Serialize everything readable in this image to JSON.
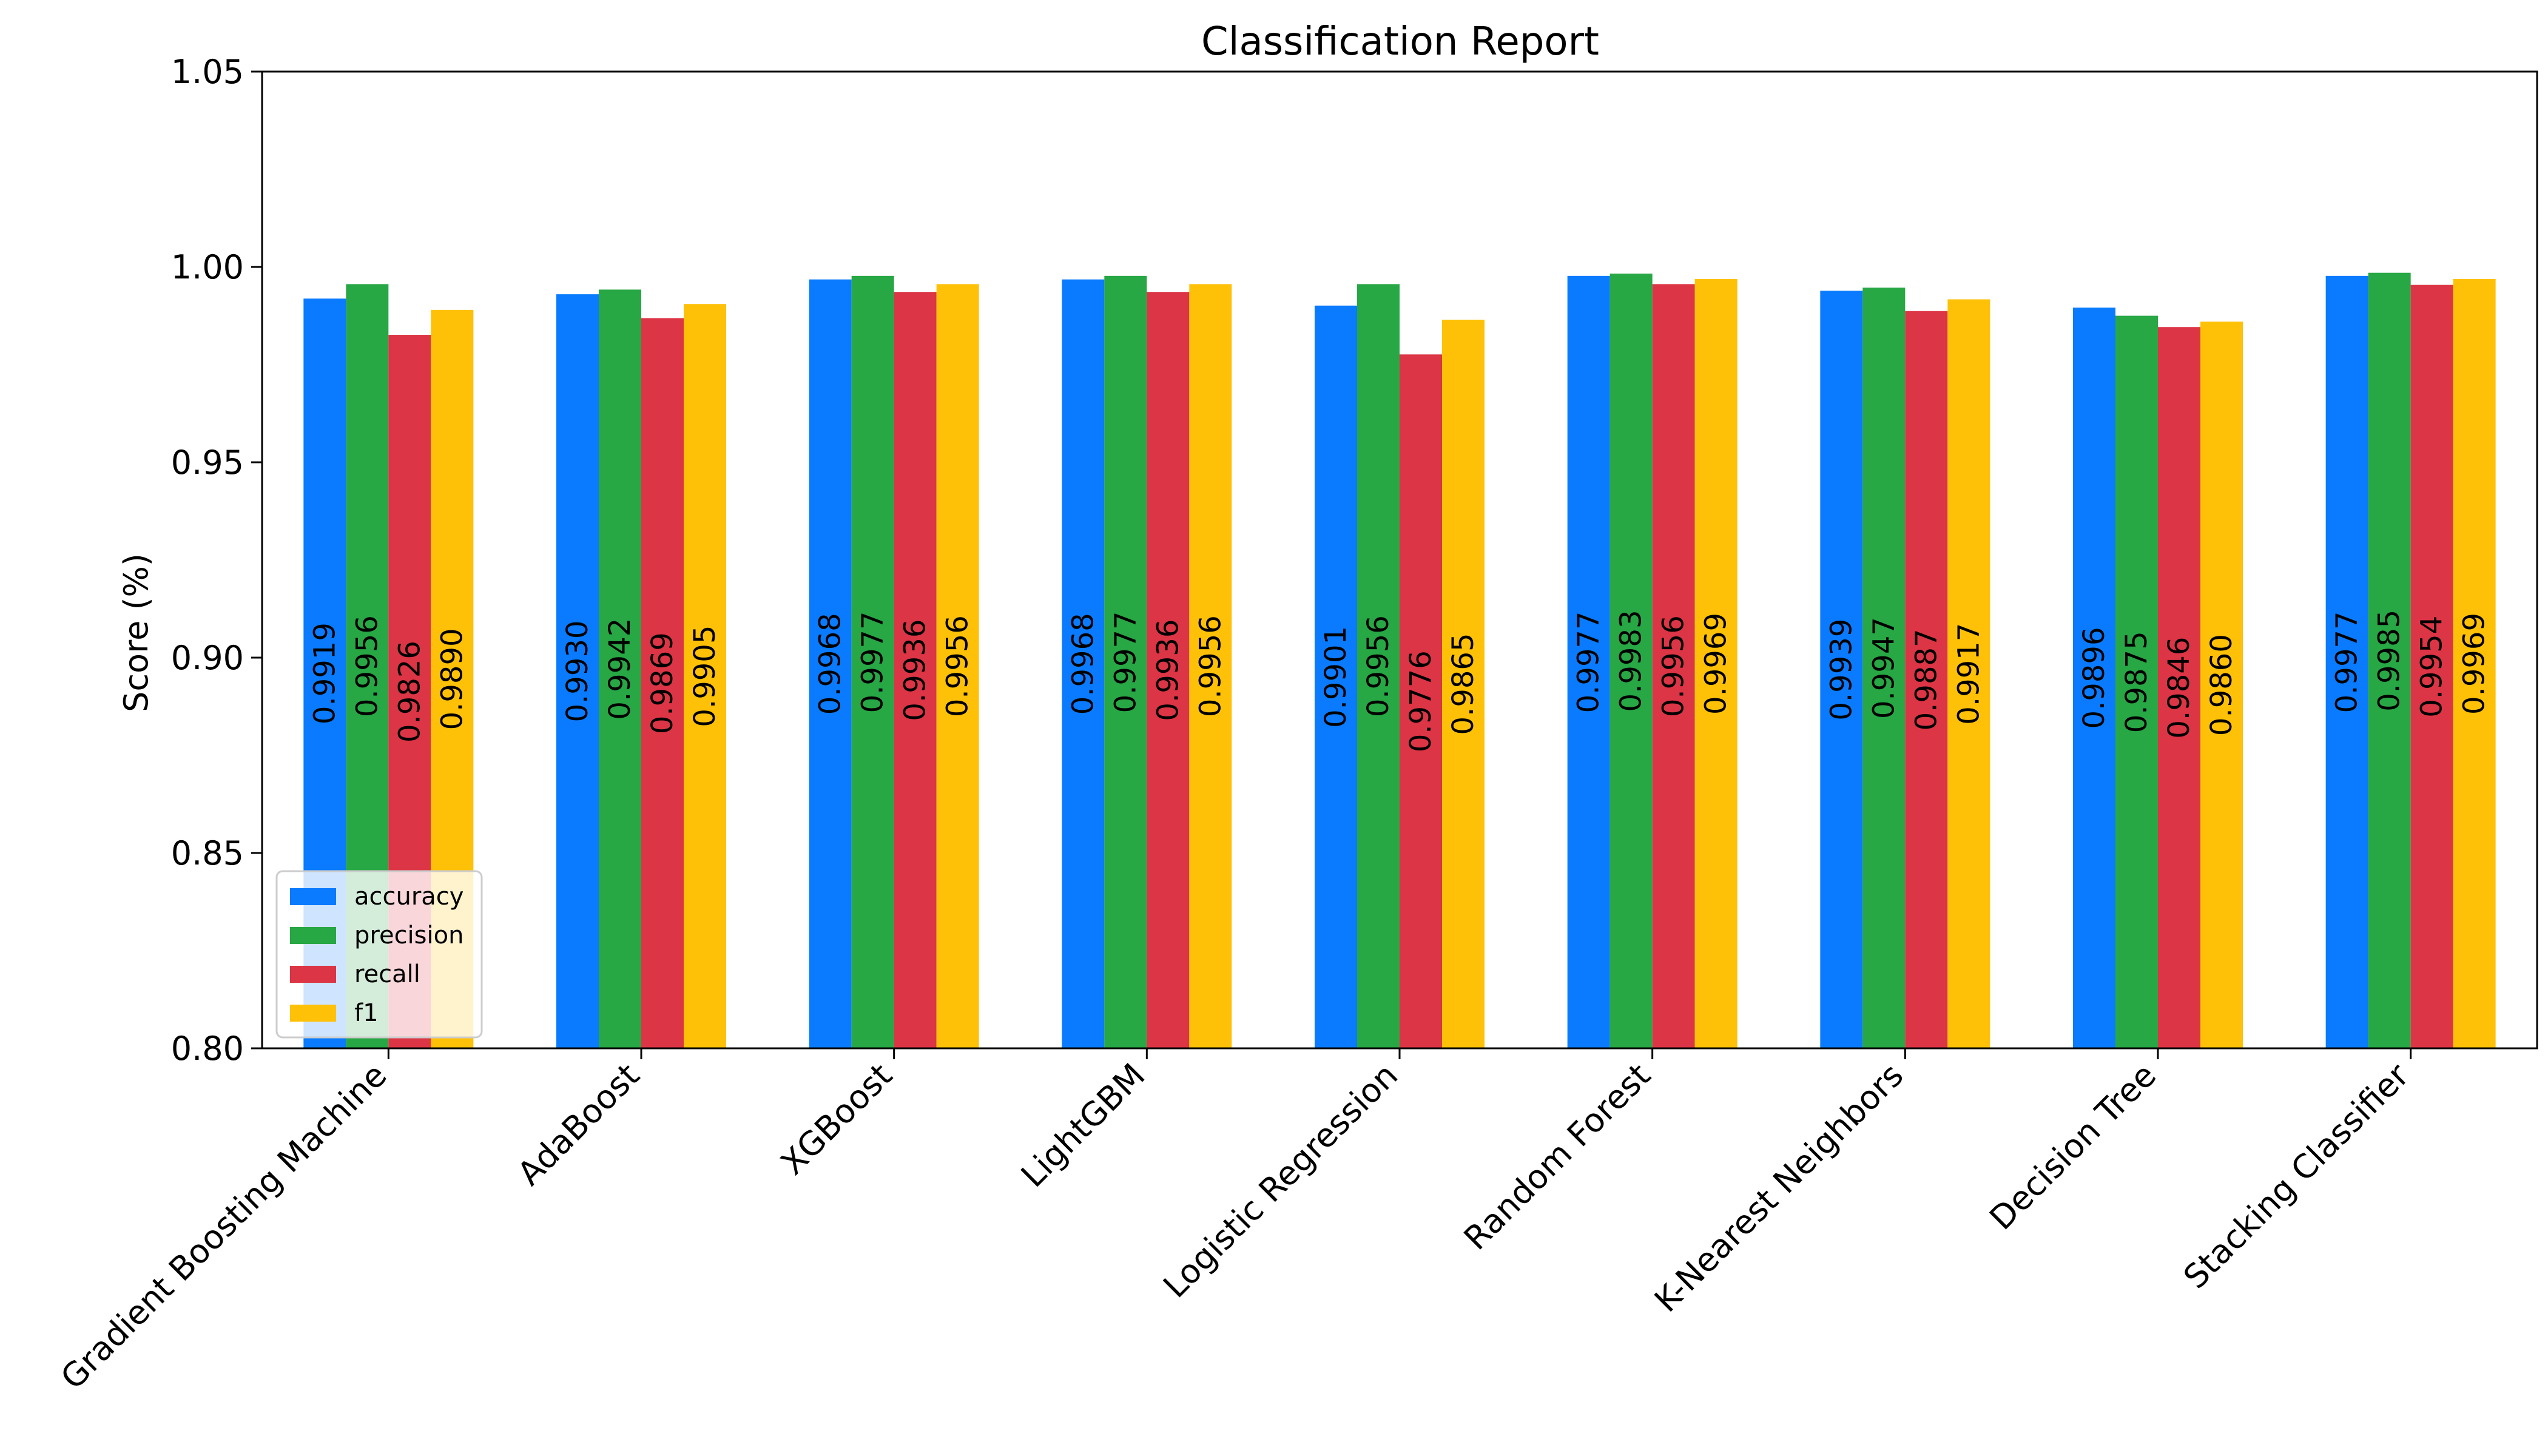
{
  "chart_data": {
    "type": "bar",
    "title": "Classification Report",
    "xlabel": "",
    "ylabel": "Score (%)",
    "ylim": [
      0.8,
      1.05
    ],
    "yticks": [
      "0.80",
      "0.85",
      "0.90",
      "0.95",
      "1.00",
      "1.05"
    ],
    "grid": false,
    "legend_position": "lower-left",
    "categories": [
      "Gradient Boosting Machine",
      "AdaBoost",
      "XGBoost",
      "LightGBM",
      "Logistic Regression",
      "Random Forest",
      "K-Nearest Neighbors",
      "Decision Tree",
      "Stacking Classifier"
    ],
    "series": [
      {
        "name": "accuracy",
        "color": "#0a7bff",
        "values": [
          0.9919,
          0.993,
          0.9968,
          0.9968,
          0.9901,
          0.9977,
          0.9939,
          0.9896,
          0.9977
        ]
      },
      {
        "name": "precision",
        "color": "#28a745",
        "values": [
          0.9956,
          0.9942,
          0.9977,
          0.9977,
          0.9956,
          0.9983,
          0.9947,
          0.9875,
          0.9985
        ]
      },
      {
        "name": "recall",
        "color": "#dc3545",
        "values": [
          0.9826,
          0.9869,
          0.9936,
          0.9936,
          0.9776,
          0.9956,
          0.9887,
          0.9846,
          0.9954
        ]
      },
      {
        "name": "f1",
        "color": "#ffc107",
        "values": [
          0.989,
          0.9905,
          0.9956,
          0.9956,
          0.9865,
          0.9969,
          0.9917,
          0.986,
          0.9969
        ]
      }
    ]
  }
}
